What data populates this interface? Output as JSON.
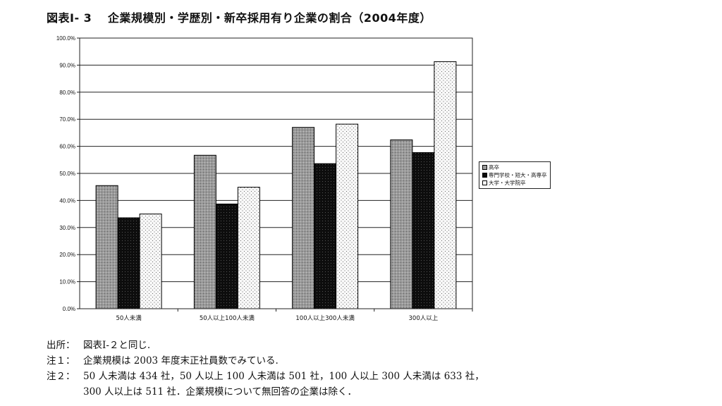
{
  "title": "図表Ⅰ- 3　 企業規模別・学歴別・新卒採用有り企業の割合（2004年度）",
  "chart_data": {
    "type": "bar",
    "categories": [
      "50人未満",
      "50人以上100人未満",
      "100人以上300人未満",
      "300人以上"
    ],
    "series": [
      {
        "name": "高卒",
        "values": [
          45.5,
          56.7,
          67.0,
          62.4
        ]
      },
      {
        "name": "専門学校・短大・高専卒",
        "values": [
          33.6,
          38.7,
          53.6,
          57.7
        ]
      },
      {
        "name": "大学・大学院卒",
        "values": [
          35.0,
          44.9,
          68.2,
          91.3
        ]
      }
    ],
    "ylim": [
      0,
      100
    ],
    "yticks": [
      "0.0%",
      "10.0%",
      "20.0%",
      "30.0%",
      "40.0%",
      "50.0%",
      "60.0%",
      "70.0%",
      "80.0%",
      "90.0%",
      "100.0%"
    ],
    "grid": true,
    "legend": "right",
    "colors": {
      "series1": "#9a9a9a",
      "series2": "#0d0d0d",
      "series3": "#f8f8f8"
    }
  },
  "notes": [
    {
      "label": "出所：",
      "text": "図表Ⅰ-２と同じ."
    },
    {
      "label": "注１：",
      "text": "企業規模は 2003 年度末正社員数でみている."
    },
    {
      "label": "注２：",
      "text": "50 人未満は 434 社，50 人以上 100 人未満は 501 社，100 人以上 300 人未満は 633 社，"
    },
    {
      "label": "",
      "text": "300 人以上は 511 社．企業規模について無回答の企業は除く．"
    }
  ]
}
